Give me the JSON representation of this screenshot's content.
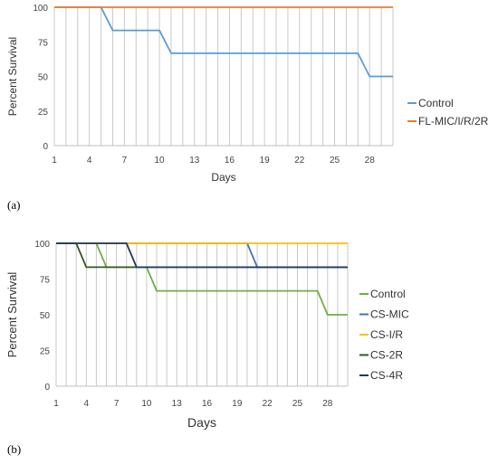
{
  "chart_data": [
    {
      "type": "line",
      "panel_label": "(a)",
      "xlabel": "Days",
      "ylabel": "Percent Survival",
      "ylim": [
        0,
        100
      ],
      "xlim": [
        1,
        30
      ],
      "x_ticks": [
        1,
        4,
        7,
        10,
        13,
        16,
        19,
        22,
        25,
        28
      ],
      "y_ticks": [
        0,
        25,
        50,
        75,
        100
      ],
      "grid": "vertical",
      "legend_position": "right",
      "series": [
        {
          "name": "Control",
          "color": "#5b9bd5",
          "points": [
            [
              1,
              100
            ],
            [
              5,
              100
            ],
            [
              6,
              83.3
            ],
            [
              10,
              83.3
            ],
            [
              11,
              66.7
            ],
            [
              27,
              66.7
            ],
            [
              28,
              50
            ],
            [
              30,
              50
            ]
          ]
        },
        {
          "name": "FL-MIC/I/R/2R",
          "color": "#ed7d31",
          "points": [
            [
              1,
              100
            ],
            [
              30,
              100
            ]
          ]
        }
      ]
    },
    {
      "type": "line",
      "panel_label": "(b)",
      "xlabel": "Days",
      "ylabel": "Percent Survival",
      "ylim": [
        0,
        100
      ],
      "xlim": [
        1,
        30
      ],
      "x_ticks": [
        1,
        4,
        7,
        10,
        13,
        16,
        19,
        22,
        25,
        28
      ],
      "y_ticks": [
        0,
        25,
        50,
        75,
        100
      ],
      "grid": "vertical",
      "legend_position": "right",
      "series": [
        {
          "name": "Control",
          "color": "#70ad47",
          "points": [
            [
              1,
              100
            ],
            [
              5,
              100
            ],
            [
              6,
              83.3
            ],
            [
              10,
              83.3
            ],
            [
              11,
              66.7
            ],
            [
              27,
              66.7
            ],
            [
              28,
              50
            ],
            [
              30,
              50
            ]
          ]
        },
        {
          "name": "CS-MIC",
          "color": "#4472c4",
          "points": [
            [
              1,
              100
            ],
            [
              20,
              100
            ],
            [
              21,
              83.3
            ],
            [
              30,
              83.3
            ]
          ]
        },
        {
          "name": "CS-I/R",
          "color": "#ffc000",
          "points": [
            [
              1,
              100
            ],
            [
              30,
              100
            ]
          ]
        },
        {
          "name": "CS-2R",
          "color": "#375623",
          "points": [
            [
              1,
              100
            ],
            [
              3,
              100
            ],
            [
              4,
              83.3
            ],
            [
              30,
              83.3
            ]
          ]
        },
        {
          "name": "CS-4R",
          "color": "#203864",
          "points": [
            [
              1,
              100
            ],
            [
              8,
              100
            ],
            [
              9,
              83.3
            ],
            [
              30,
              83.3
            ]
          ]
        }
      ]
    }
  ]
}
